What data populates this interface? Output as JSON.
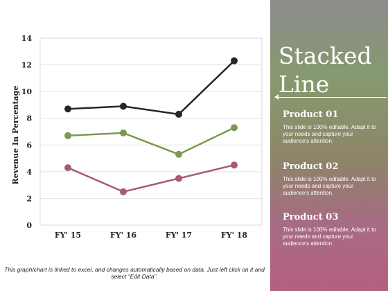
{
  "chart_data": {
    "type": "line",
    "title": "",
    "xlabel": "",
    "ylabel": "Revenue In Percentage",
    "categories": [
      "FY' 15",
      "FY' 16",
      "FY' 17",
      "FY' 18"
    ],
    "ylim": [
      0,
      14
    ],
    "yticks": [
      0,
      2,
      4,
      6,
      8,
      10,
      12,
      14
    ],
    "grid": true,
    "series": [
      {
        "values": [
          8.7,
          8.9,
          8.3,
          12.3
        ],
        "color": "#262626"
      },
      {
        "values": [
          6.7,
          6.9,
          5.3,
          7.3
        ],
        "color": "#7a9a50"
      },
      {
        "values": [
          4.3,
          2.5,
          3.5,
          4.5
        ],
        "color": "#a65a74"
      }
    ]
  },
  "sidebar": {
    "title": "Stacked Line",
    "products": [
      {
        "title": "Product 01",
        "desc": "This slide is 100% editable. Adapt it to your needs and capture your audience's attention."
      },
      {
        "title": "Product 02",
        "desc": "This slide is 100% editable. Adapt it to your needs and capture your audience's attention."
      },
      {
        "title": "Product 03",
        "desc": "This slide is 100% editable. Adapt it to your needs and capture your audience's attention."
      }
    ]
  },
  "footnote": "This graph/chart is linked to excel, and changes automatically based on data. Just left click on it and select “Edit Data”."
}
